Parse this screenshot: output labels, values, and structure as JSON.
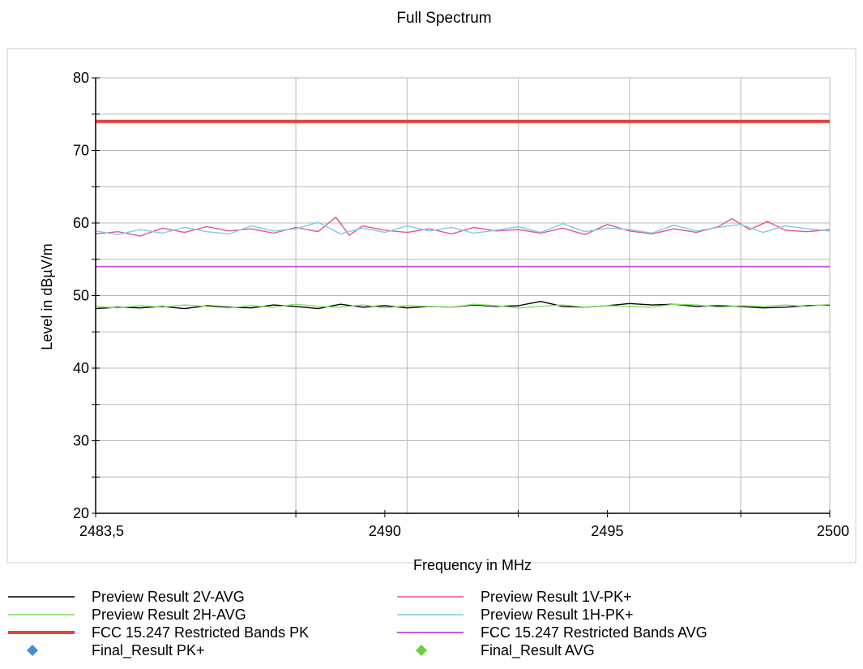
{
  "chart_data": {
    "type": "line",
    "title": "Full Spectrum",
    "xlabel": "Frequency in MHz",
    "ylabel": "Level in dBµV/m",
    "xlim": [
      2483.5,
      2500
    ],
    "ylim": [
      20,
      80
    ],
    "x_ticks": [
      {
        "value": 2483.5,
        "label": "2483,5"
      },
      {
        "value": 2490,
        "label": "2490"
      },
      {
        "value": 2495,
        "label": "2495"
      },
      {
        "value": 2500,
        "label": "2500"
      }
    ],
    "y_ticks": [
      {
        "value": 20,
        "label": "20"
      },
      {
        "value": 30,
        "label": "30"
      },
      {
        "value": 40,
        "label": "40"
      },
      {
        "value": 50,
        "label": "50"
      },
      {
        "value": 60,
        "label": "60"
      },
      {
        "value": 70,
        "label": "70"
      },
      {
        "value": 80,
        "label": "80"
      }
    ],
    "grid": true,
    "legend": "bottom",
    "series": [
      {
        "name": "Preview Result 2V-AVG",
        "color": "#000000",
        "style": "line",
        "x": [
          2483.5,
          2484,
          2484.5,
          2485,
          2485.5,
          2486,
          2486.5,
          2487,
          2487.5,
          2488,
          2488.5,
          2489,
          2489.5,
          2490,
          2490.5,
          2491,
          2491.5,
          2492,
          2492.5,
          2493,
          2493.5,
          2494,
          2494.5,
          2495,
          2495.5,
          2496,
          2496.5,
          2497,
          2497.5,
          2498,
          2498.5,
          2499,
          2499.5,
          2500
        ],
        "y": [
          48.2,
          48.4,
          48.3,
          48.5,
          48.2,
          48.6,
          48.4,
          48.3,
          48.7,
          48.5,
          48.2,
          48.8,
          48.4,
          48.6,
          48.3,
          48.5,
          48.4,
          48.7,
          48.5,
          48.6,
          49.2,
          48.5,
          48.4,
          48.6,
          48.9,
          48.7,
          48.8,
          48.5,
          48.6,
          48.5,
          48.3,
          48.4,
          48.6,
          48.7
        ]
      },
      {
        "name": "Preview Result 2H-AVG",
        "color": "#7fe05a",
        "style": "line",
        "x": [
          2483.5,
          2484,
          2484.5,
          2485,
          2485.5,
          2486,
          2486.5,
          2487,
          2487.5,
          2488,
          2488.5,
          2489,
          2489.5,
          2490,
          2490.5,
          2491,
          2491.5,
          2492,
          2492.5,
          2493,
          2493.5,
          2494,
          2494.5,
          2495,
          2495.5,
          2496,
          2496.5,
          2497,
          2497.5,
          2498,
          2498.5,
          2499,
          2499.5,
          2500
        ],
        "y": [
          48.5,
          48.3,
          48.6,
          48.4,
          48.7,
          48.5,
          48.3,
          48.6,
          48.4,
          48.8,
          48.5,
          48.4,
          48.7,
          48.3,
          48.6,
          48.5,
          48.4,
          48.8,
          48.6,
          48.3,
          48.5,
          48.7,
          48.4,
          48.6,
          48.5,
          48.4,
          48.8,
          48.7,
          48.4,
          48.6,
          48.5,
          48.7,
          48.5,
          48.8
        ]
      },
      {
        "name": "FCC 15.247 Restricted Bands PK",
        "color": "#e8403a",
        "style": "thick",
        "x": [
          2483.5,
          2500
        ],
        "y": [
          74,
          74
        ]
      },
      {
        "name": "Final_Result PK+",
        "color": "#3f8fd8",
        "style": "diamond",
        "x": [],
        "y": []
      },
      {
        "name": "Preview Result 1V-PK+",
        "color": "#e0559a",
        "style": "line",
        "x": [
          2483.5,
          2484,
          2484.5,
          2485,
          2485.5,
          2486,
          2486.5,
          2487,
          2487.5,
          2488,
          2488.5,
          2488.9,
          2489.2,
          2489.5,
          2490,
          2490.5,
          2491,
          2491.5,
          2492,
          2492.5,
          2493,
          2493.5,
          2494,
          2494.5,
          2495,
          2495.5,
          2496,
          2496.5,
          2497,
          2497.5,
          2497.8,
          2498.2,
          2498.6,
          2499,
          2499.5,
          2500
        ],
        "y": [
          58.5,
          58.8,
          58.2,
          59.3,
          58.7,
          59.5,
          58.9,
          59.2,
          58.6,
          59.4,
          58.8,
          60.8,
          58.3,
          59.6,
          59.0,
          58.7,
          59.2,
          58.5,
          59.4,
          58.9,
          59.1,
          58.6,
          59.3,
          58.4,
          59.8,
          58.9,
          58.5,
          59.2,
          58.7,
          59.5,
          60.6,
          59.1,
          60.2,
          59.0,
          58.8,
          59.1
        ]
      },
      {
        "name": "Preview Result 1H-PK+",
        "color": "#7dcbe8",
        "style": "line",
        "x": [
          2483.5,
          2484,
          2484.5,
          2485,
          2485.5,
          2486,
          2486.5,
          2487,
          2487.5,
          2488,
          2488.5,
          2489,
          2489.5,
          2490,
          2490.5,
          2491,
          2491.5,
          2492,
          2492.5,
          2493,
          2493.5,
          2494,
          2494.5,
          2495,
          2495.5,
          2496,
          2496.5,
          2497,
          2497.5,
          2498,
          2498.5,
          2499,
          2499.5,
          2500
        ],
        "y": [
          58.9,
          58.4,
          59.1,
          58.6,
          59.4,
          58.8,
          58.5,
          59.6,
          58.9,
          59.2,
          60.1,
          58.5,
          59.3,
          58.7,
          59.6,
          58.9,
          59.4,
          58.6,
          59.0,
          59.5,
          58.7,
          59.9,
          58.8,
          59.3,
          59.1,
          58.6,
          59.7,
          58.9,
          59.4,
          59.8,
          58.7,
          59.6,
          59.2,
          58.9
        ]
      },
      {
        "name": "FCC 15.247 Restricted Bands AVG",
        "color": "#c85ce0",
        "style": "thin",
        "x": [
          2483.5,
          2500
        ],
        "y": [
          54,
          54
        ]
      },
      {
        "name": "Final_Result AVG",
        "color": "#6ccf3c",
        "style": "diamond",
        "x": [],
        "y": []
      }
    ]
  }
}
